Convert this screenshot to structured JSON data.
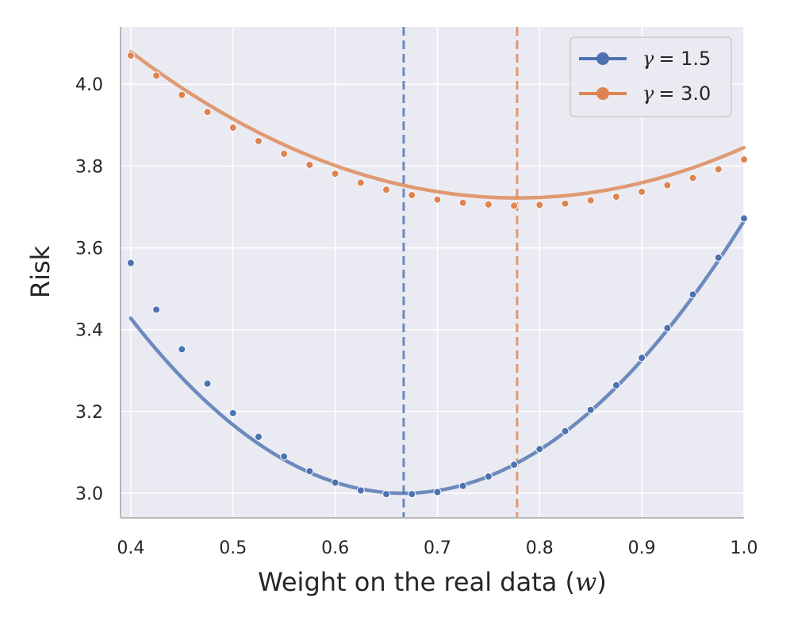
{
  "chart_data": {
    "type": "line",
    "title": "",
    "xlabel_text": "Weight on the real data (",
    "xlabel_var": "w",
    "xlabel_close": ")",
    "ylabel": "Risk",
    "xlim": [
      0.39,
      1.0
    ],
    "ylim": [
      2.94,
      4.14
    ],
    "xticks": [
      0.4,
      0.5,
      0.6,
      0.7,
      0.8,
      0.9,
      1.0
    ],
    "xtick_labels": [
      "0.4",
      "0.5",
      "0.6",
      "0.7",
      "0.8",
      "0.9",
      "1.0"
    ],
    "yticks": [
      3.0,
      3.2,
      3.4,
      3.6,
      3.8,
      4.0
    ],
    "ytick_labels": [
      "3.0",
      "3.2",
      "3.4",
      "3.6",
      "3.8",
      "4.0"
    ],
    "grid": true,
    "legend_position": "top-right",
    "series": [
      {
        "name": "γ = 1.5",
        "symbol": "γ",
        "value_label": "= 1.5",
        "color": "#4c72b0",
        "fit": {
          "vertex_x": 0.667,
          "vertex_y": 3.0,
          "curvature": 6.0
        },
        "optimum_w": 0.667,
        "points_x": [
          0.4,
          0.425,
          0.45,
          0.475,
          0.5,
          0.525,
          0.55,
          0.575,
          0.6,
          0.625,
          0.65,
          0.675,
          0.7,
          0.725,
          0.75,
          0.775,
          0.8,
          0.825,
          0.85,
          0.875,
          0.9,
          0.925,
          0.95,
          0.975,
          1.0
        ],
        "points_y": [
          3.563,
          3.449,
          3.352,
          3.268,
          3.196,
          3.138,
          3.09,
          3.054,
          3.026,
          3.007,
          2.998,
          2.998,
          3.003,
          3.018,
          3.041,
          3.07,
          3.108,
          3.152,
          3.204,
          3.264,
          3.331,
          3.404,
          3.486,
          3.576,
          3.672
        ]
      },
      {
        "name": "γ = 3.0",
        "symbol": "γ",
        "value_label": "= 3.0",
        "color": "#dd8452",
        "fit": {
          "vertex_x": 0.778,
          "vertex_y": 3.722,
          "curvature": 2.5
        },
        "optimum_w": 0.778,
        "points_x": [
          0.4,
          0.425,
          0.45,
          0.475,
          0.5,
          0.525,
          0.55,
          0.575,
          0.6,
          0.625,
          0.65,
          0.675,
          0.7,
          0.725,
          0.75,
          0.775,
          0.8,
          0.825,
          0.85,
          0.875,
          0.9,
          0.925,
          0.95,
          0.975,
          1.0
        ],
        "points_y": [
          4.07,
          4.021,
          3.974,
          3.932,
          3.894,
          3.861,
          3.83,
          3.803,
          3.781,
          3.759,
          3.742,
          3.729,
          3.718,
          3.71,
          3.706,
          3.703,
          3.705,
          3.708,
          3.716,
          3.725,
          3.737,
          3.753,
          3.771,
          3.792,
          3.816
        ]
      }
    ]
  }
}
